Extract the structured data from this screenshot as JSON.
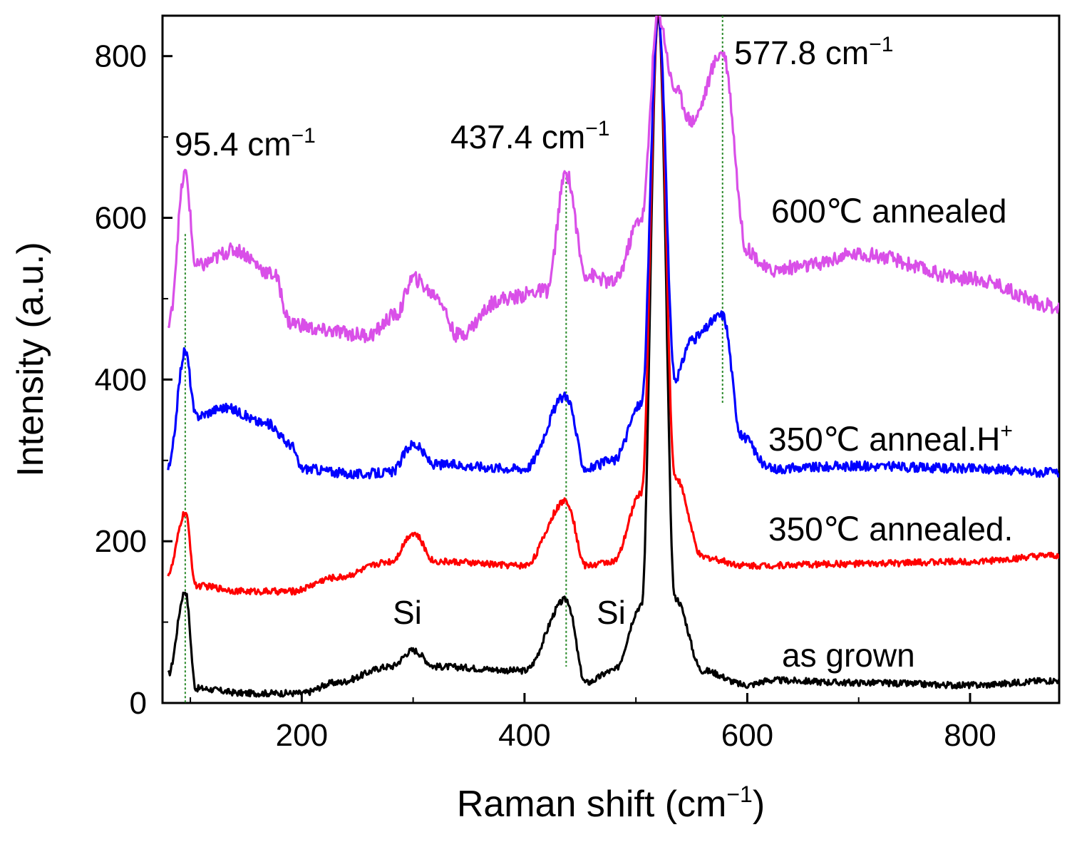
{
  "chart_data": {
    "type": "line",
    "title": "",
    "xlabel": "Raman shift (cm⁻¹)",
    "ylabel": "Intensity (a.u.)",
    "xlim": [
      75,
      880
    ],
    "ylim": [
      0,
      850
    ],
    "xticks": [
      200,
      400,
      600,
      800
    ],
    "yticks": [
      0,
      200,
      400,
      600,
      800
    ],
    "grid": false,
    "legend": "none (series labeled inline at right)",
    "series": [
      {
        "name": "as grown",
        "color": "#000000",
        "baseline": 30,
        "peaks": [
          {
            "x": 95.4,
            "height": 105,
            "width": 2.5
          },
          {
            "x": 300,
            "height": 38,
            "width": 8
          },
          {
            "x": 437.4,
            "height": 95,
            "width": 4
          },
          {
            "x": 520,
            "height": 1400,
            "width": 4
          },
          {
            "x": 380,
            "height": 8,
            "width": 15
          }
        ],
        "points": [
          [
            80,
            35
          ],
          [
            95.4,
            138
          ],
          [
            105,
            18
          ],
          [
            150,
            12
          ],
          [
            200,
            12
          ],
          [
            230,
            25
          ],
          [
            280,
            45
          ],
          [
            300,
            65
          ],
          [
            320,
            45
          ],
          [
            400,
            40
          ],
          [
            437.4,
            128
          ],
          [
            455,
            25
          ],
          [
            480,
            40
          ],
          [
            505,
            120
          ],
          [
            520,
            850
          ],
          [
            535,
            130
          ],
          [
            560,
            40
          ],
          [
            600,
            22
          ],
          [
            620,
            28
          ],
          [
            700,
            25
          ],
          [
            800,
            22
          ],
          [
            880,
            28
          ]
        ]
      },
      {
        "name": "350℃ annealed.",
        "color": "#ff0000",
        "baseline": 170,
        "peaks": [
          {
            "x": 95.4,
            "height": 80,
            "width": 2.5
          },
          {
            "x": 300,
            "height": 40,
            "width": 8
          },
          {
            "x": 437.4,
            "height": 85,
            "width": 4
          },
          {
            "x": 520,
            "height": 1200,
            "width": 4
          }
        ],
        "points": [
          [
            80,
            160
          ],
          [
            95.4,
            235
          ],
          [
            105,
            145
          ],
          [
            150,
            138
          ],
          [
            190,
            138
          ],
          [
            230,
            155
          ],
          [
            280,
            175
          ],
          [
            300,
            210
          ],
          [
            320,
            175
          ],
          [
            400,
            170
          ],
          [
            437.4,
            250
          ],
          [
            455,
            170
          ],
          [
            480,
            175
          ],
          [
            505,
            260
          ],
          [
            520,
            850
          ],
          [
            535,
            280
          ],
          [
            560,
            180
          ],
          [
            600,
            170
          ],
          [
            700,
            172
          ],
          [
            800,
            175
          ],
          [
            880,
            182
          ]
        ]
      },
      {
        "name": "350℃ anneal.H⁺",
        "color": "#0000ff",
        "baseline": 290,
        "peaks": [
          {
            "x": 95.4,
            "height": 90,
            "width": 2.5
          },
          {
            "x": 300,
            "height": 30,
            "width": 8
          },
          {
            "x": 437.4,
            "height": 85,
            "width": 4
          },
          {
            "x": 577.8,
            "height": 170,
            "width": 8
          },
          {
            "x": 520,
            "height": 1300,
            "width": 4
          }
        ],
        "points": [
          [
            80,
            290
          ],
          [
            95.4,
            435
          ],
          [
            105,
            355
          ],
          [
            130,
            365
          ],
          [
            170,
            345
          ],
          [
            190,
            320
          ],
          [
            200,
            290
          ],
          [
            250,
            283
          ],
          [
            280,
            285
          ],
          [
            300,
            320
          ],
          [
            320,
            295
          ],
          [
            400,
            290
          ],
          [
            437.4,
            380
          ],
          [
            455,
            290
          ],
          [
            480,
            300
          ],
          [
            505,
            370
          ],
          [
            520,
            850
          ],
          [
            535,
            400
          ],
          [
            550,
            450
          ],
          [
            577.8,
            480
          ],
          [
            595,
            330
          ],
          [
            620,
            290
          ],
          [
            700,
            293
          ],
          [
            800,
            290
          ],
          [
            880,
            285
          ]
        ]
      },
      {
        "name": "600℃ annealed",
        "color": "#d94fe8",
        "baseline": 490,
        "peaks": [
          {
            "x": 95.4,
            "height": 120,
            "width": 2.5
          },
          {
            "x": 437.4,
            "height": 110,
            "width": 4
          },
          {
            "x": 577.8,
            "height": 180,
            "width": 8
          },
          {
            "x": 520,
            "height": 1500,
            "width": 4
          }
        ],
        "points": [
          [
            80,
            465
          ],
          [
            95.4,
            655
          ],
          [
            105,
            540
          ],
          [
            140,
            560
          ],
          [
            175,
            530
          ],
          [
            190,
            470
          ],
          [
            220,
            460
          ],
          [
            260,
            455
          ],
          [
            285,
            480
          ],
          [
            300,
            525
          ],
          [
            320,
            505
          ],
          [
            340,
            455
          ],
          [
            380,
            500
          ],
          [
            420,
            510
          ],
          [
            437.4,
            655
          ],
          [
            455,
            530
          ],
          [
            480,
            520
          ],
          [
            505,
            600
          ],
          [
            520,
            850
          ],
          [
            535,
            760
          ],
          [
            550,
            720
          ],
          [
            577.8,
            805
          ],
          [
            600,
            560
          ],
          [
            620,
            535
          ],
          [
            650,
            540
          ],
          [
            700,
            555
          ],
          [
            800,
            525
          ],
          [
            880,
            490
          ]
        ]
      }
    ],
    "annotations": [
      {
        "text": "95.4 cm⁻¹",
        "x": 95.4
      },
      {
        "text": "437.4 cm⁻¹",
        "x": 437.4
      },
      {
        "text": "577.8 cm⁻¹",
        "x": 577.8
      },
      {
        "text": "Si",
        "x": 300
      },
      {
        "text": "Si",
        "x": 475
      }
    ]
  },
  "labels": {
    "xlabel_main": "Raman shift (cm",
    "xlabel_sup": "−1",
    "xlabel_close": ")",
    "ylabel": "Intensity (a.u.)",
    "annot_95_main": "95.4 cm",
    "annot_437_main": "437.4 cm",
    "annot_577_main": "577.8 cm",
    "annot_sup": "−1",
    "si_1": "Si",
    "si_2": "Si",
    "label_600": "600℃ annealed",
    "label_350h_main": "350℃ anneal.H",
    "label_350h_sup": "+",
    "label_350": "350℃ annealed.",
    "label_asgrown": "as grown"
  }
}
